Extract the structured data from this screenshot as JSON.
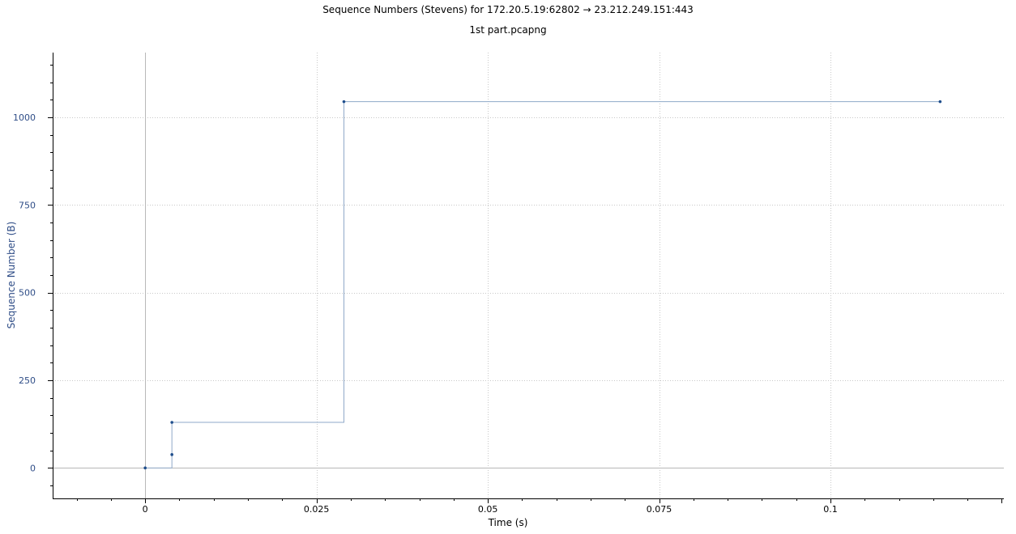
{
  "chart_data": {
    "type": "line",
    "title": "Sequence Numbers (Stevens) for 172.20.5.19:62802 → 23.212.249.151:443",
    "subtitle": "1st part.pcapng",
    "xlabel": "Time (s)",
    "ylabel": "Sequence Number (B)",
    "xlim": [
      -0.0135,
      0.1253
    ],
    "ylim": [
      -87,
      1185
    ],
    "x_ticks": [
      0,
      0.025,
      0.05,
      0.075,
      0.1
    ],
    "x_tick_labels": [
      "0",
      "0.025",
      "0.05",
      "0.075",
      "0.1"
    ],
    "y_ticks": [
      0,
      250,
      500,
      750,
      1000
    ],
    "y_tick_labels": [
      "0",
      "250",
      "500",
      "750",
      "1000"
    ],
    "grid": true,
    "step": true,
    "series": [
      {
        "color": "#1f4e8c",
        "line_color": "#8fa9c8",
        "points": [
          {
            "x": 0,
            "y": 0
          },
          {
            "x": 0.0039,
            "y": 38
          },
          {
            "x": 0.0039,
            "y": 130
          },
          {
            "x": 0.029,
            "y": 1045
          },
          {
            "x": 0.116,
            "y": 1045
          }
        ]
      }
    ]
  }
}
